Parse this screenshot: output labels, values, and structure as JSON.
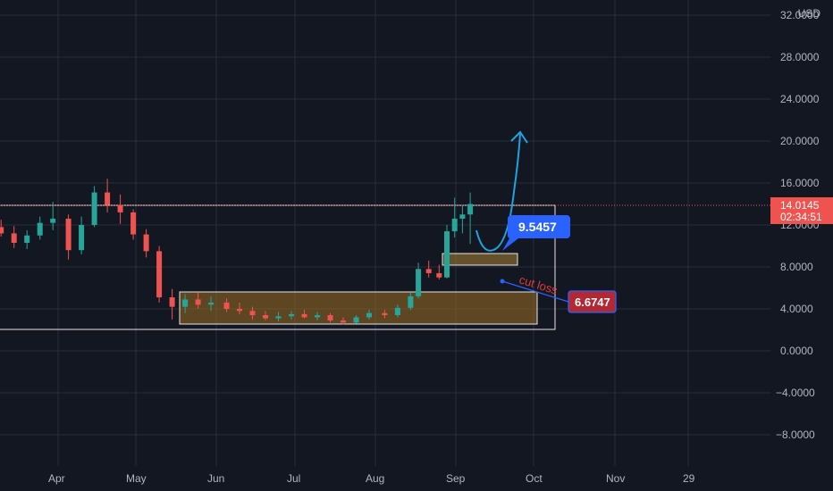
{
  "chart_data": {
    "type": "candlestick",
    "y_axis": {
      "ticks": [
        "32.0000",
        "28.0000",
        "24.0000",
        "20.0000",
        "16.0000",
        "12.0000",
        "8.0000",
        "4.0000",
        "0.0000",
        "−4.0000",
        "−8.0000"
      ],
      "currency": "USD"
    },
    "x_axis": {
      "ticks": [
        "Apr",
        "May",
        "Jun",
        "Jul",
        "Aug",
        "Sep",
        "Oct",
        "Nov",
        "29"
      ]
    },
    "last_price": "14.0145",
    "countdown": "02:34:51",
    "annotations": {
      "target_label": "9.5457",
      "stop_label": "6.6747",
      "cut_loss_text": "cut loss"
    },
    "series": [
      {
        "x": "2024-03-10",
        "o": 11.8,
        "h": 12.5,
        "l": 10.9,
        "c": 11.2
      },
      {
        "x": "2024-03-15",
        "o": 11.2,
        "h": 11.9,
        "l": 9.8,
        "c": 10.3
      },
      {
        "x": "2024-03-20",
        "o": 10.3,
        "h": 11.5,
        "l": 9.7,
        "c": 11.0
      },
      {
        "x": "2024-03-25",
        "o": 11.0,
        "h": 12.8,
        "l": 10.6,
        "c": 12.2
      },
      {
        "x": "2024-03-30",
        "o": 12.2,
        "h": 14.2,
        "l": 11.5,
        "c": 12.6
      },
      {
        "x": "2024-04-05",
        "o": 12.6,
        "h": 13.0,
        "l": 8.7,
        "c": 9.6
      },
      {
        "x": "2024-04-10",
        "o": 9.6,
        "h": 12.8,
        "l": 9.2,
        "c": 12.0
      },
      {
        "x": "2024-04-15",
        "o": 12.0,
        "h": 15.7,
        "l": 11.8,
        "c": 15.1
      },
      {
        "x": "2024-04-20",
        "o": 15.1,
        "h": 16.4,
        "l": 13.2,
        "c": 13.9
      },
      {
        "x": "2024-04-25",
        "o": 13.9,
        "h": 14.9,
        "l": 12.1,
        "c": 13.2
      },
      {
        "x": "2024-04-30",
        "o": 13.2,
        "h": 13.5,
        "l": 10.6,
        "c": 11.1
      },
      {
        "x": "2024-05-05",
        "o": 11.1,
        "h": 11.6,
        "l": 8.9,
        "c": 9.5
      },
      {
        "x": "2024-05-10",
        "o": 9.5,
        "h": 10.0,
        "l": 4.6,
        "c": 5.1
      },
      {
        "x": "2024-05-15",
        "o": 5.1,
        "h": 5.9,
        "l": 3.0,
        "c": 4.2
      },
      {
        "x": "2024-05-20",
        "o": 4.2,
        "h": 5.4,
        "l": 3.6,
        "c": 4.9
      },
      {
        "x": "2024-05-25",
        "o": 4.9,
        "h": 5.6,
        "l": 4.0,
        "c": 4.4
      },
      {
        "x": "2024-05-30",
        "o": 4.4,
        "h": 5.2,
        "l": 3.8,
        "c": 4.6
      },
      {
        "x": "2024-06-05",
        "o": 4.6,
        "h": 5.0,
        "l": 3.7,
        "c": 4.0
      },
      {
        "x": "2024-06-10",
        "o": 4.0,
        "h": 4.6,
        "l": 3.5,
        "c": 3.8
      },
      {
        "x": "2024-06-15",
        "o": 3.8,
        "h": 4.2,
        "l": 3.0,
        "c": 3.4
      },
      {
        "x": "2024-06-20",
        "o": 3.4,
        "h": 3.8,
        "l": 2.9,
        "c": 3.1
      },
      {
        "x": "2024-06-25",
        "o": 3.1,
        "h": 3.7,
        "l": 2.8,
        "c": 3.3
      },
      {
        "x": "2024-06-30",
        "o": 3.3,
        "h": 3.8,
        "l": 3.0,
        "c": 3.5
      },
      {
        "x": "2024-07-05",
        "o": 3.5,
        "h": 3.9,
        "l": 3.1,
        "c": 3.2
      },
      {
        "x": "2024-07-10",
        "o": 3.2,
        "h": 3.7,
        "l": 2.9,
        "c": 3.4
      },
      {
        "x": "2024-07-15",
        "o": 3.4,
        "h": 3.6,
        "l": 2.7,
        "c": 2.9
      },
      {
        "x": "2024-07-20",
        "o": 2.9,
        "h": 3.2,
        "l": 2.5,
        "c": 2.7
      },
      {
        "x": "2024-07-25",
        "o": 2.7,
        "h": 3.4,
        "l": 2.6,
        "c": 3.2
      },
      {
        "x": "2024-07-30",
        "o": 3.2,
        "h": 3.9,
        "l": 3.0,
        "c": 3.6
      },
      {
        "x": "2024-08-05",
        "o": 3.6,
        "h": 3.9,
        "l": 3.1,
        "c": 3.4
      },
      {
        "x": "2024-08-10",
        "o": 3.4,
        "h": 4.4,
        "l": 3.2,
        "c": 4.1
      },
      {
        "x": "2024-08-15",
        "o": 4.1,
        "h": 5.6,
        "l": 3.9,
        "c": 5.2
      },
      {
        "x": "2024-08-18",
        "o": 5.2,
        "h": 8.4,
        "l": 5.0,
        "c": 7.8
      },
      {
        "x": "2024-08-22",
        "o": 7.8,
        "h": 8.6,
        "l": 7.0,
        "c": 7.4
      },
      {
        "x": "2024-08-26",
        "o": 7.4,
        "h": 8.2,
        "l": 6.8,
        "c": 7.0
      },
      {
        "x": "2024-08-29",
        "o": 7.0,
        "h": 12.0,
        "l": 6.9,
        "c": 11.4
      },
      {
        "x": "2024-09-01",
        "o": 11.4,
        "h": 14.6,
        "l": 10.8,
        "c": 12.6
      },
      {
        "x": "2024-09-04",
        "o": 12.6,
        "h": 13.9,
        "l": 11.2,
        "c": 13.0
      },
      {
        "x": "2024-09-07",
        "o": 13.0,
        "h": 15.1,
        "l": 10.2,
        "c": 14.0
      }
    ]
  }
}
